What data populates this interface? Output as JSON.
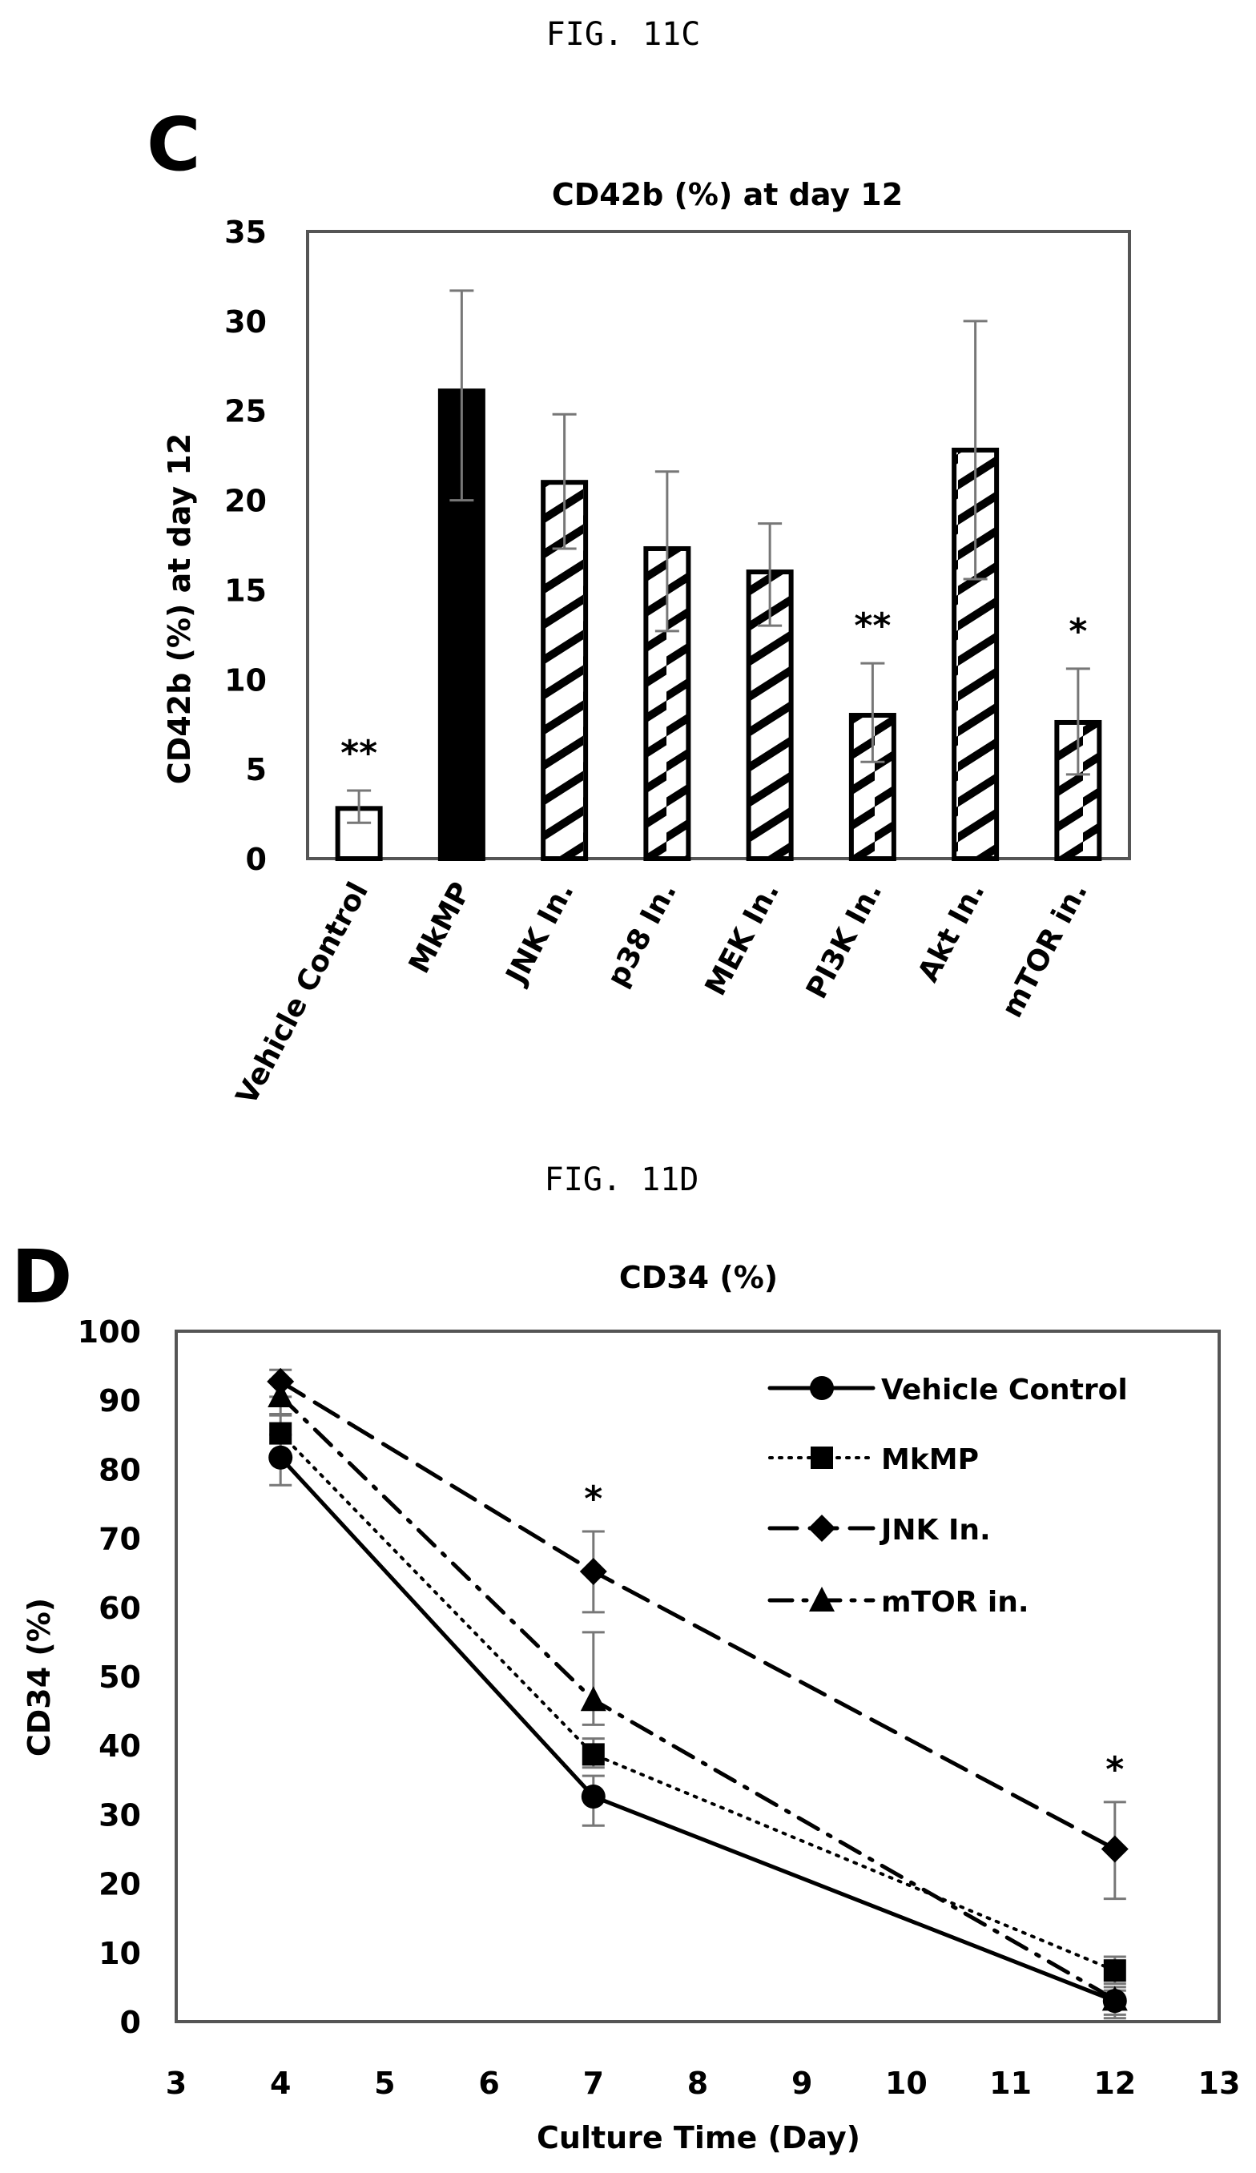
{
  "figures": {
    "fig_c_caption": "FIG. 11C",
    "fig_d_caption": "FIG. 11D",
    "panel_c_letter": "C",
    "panel_d_letter": "D"
  },
  "chart_data": [
    {
      "type": "bar",
      "title": "CD42b (%) at day 12",
      "xlabel": "",
      "ylabel": "CD42b (%) at day 12",
      "ylim": [
        0,
        35
      ],
      "yticks": [
        "0",
        "5",
        "10",
        "15",
        "20",
        "25",
        "30",
        "35"
      ],
      "ytick_values": [
        0,
        5,
        10,
        15,
        20,
        25,
        30,
        35
      ],
      "grid": false,
      "categories": [
        "Vehicle Control",
        "MkMP",
        "JNK In.",
        "p38 In.",
        "MEK In.",
        "PI3K In.",
        "Akt In.",
        "mTOR in."
      ],
      "values": [
        2.8,
        26.1,
        21.0,
        17.3,
        16.0,
        8.0,
        22.8,
        7.6
      ],
      "error_upper": [
        3.8,
        31.7,
        24.8,
        21.6,
        18.7,
        10.9,
        30.0,
        10.6
      ],
      "error_lower": [
        2.0,
        20.0,
        17.3,
        12.7,
        13.0,
        5.4,
        15.6,
        4.7
      ],
      "fill_styles": [
        "white",
        "black",
        "hatched",
        "hatched",
        "hatched",
        "hatched",
        "hatched",
        "hatched"
      ],
      "significance": [
        "**",
        "",
        "",
        "",
        "",
        "**",
        "",
        "*"
      ]
    },
    {
      "type": "line",
      "title": "CD34 (%)",
      "xlabel": "Culture Time (Day)",
      "ylabel": "CD34 (%)",
      "xlim": [
        3,
        13
      ],
      "ylim": [
        0,
        100
      ],
      "xticks": [
        "3",
        "4",
        "5",
        "6",
        "7",
        "8",
        "9",
        "10",
        "11",
        "12",
        "13"
      ],
      "xtick_values": [
        3,
        4,
        5,
        6,
        7,
        8,
        9,
        10,
        11,
        12,
        13
      ],
      "yticks": [
        "0",
        "10",
        "20",
        "30",
        "40",
        "50",
        "60",
        "70",
        "80",
        "90",
        "100"
      ],
      "ytick_values": [
        0,
        10,
        20,
        30,
        40,
        50,
        60,
        70,
        80,
        90,
        100
      ],
      "grid": false,
      "legend_position": "top-right",
      "x": [
        4,
        7,
        12
      ],
      "series": [
        {
          "name": "Vehicle Control",
          "marker": "circle",
          "line_style": "solid",
          "values": [
            81.7,
            32.6,
            3.0
          ],
          "error_upper": [
            85.0,
            35.6,
            4.5
          ],
          "error_lower": [
            77.7,
            28.4,
            1.0
          ]
        },
        {
          "name": "MkMP",
          "marker": "square",
          "line_style": "dotted",
          "values": [
            85.2,
            38.7,
            7.4
          ],
          "error_upper": [
            88.0,
            41.0,
            9.4
          ],
          "error_lower": [
            82.0,
            36.8,
            5.5
          ]
        },
        {
          "name": "JNK In.",
          "marker": "diamond",
          "line_style": "dashed",
          "values": [
            92.7,
            65.2,
            25.0
          ],
          "error_upper": [
            94.4,
            71.0,
            31.8
          ],
          "error_lower": [
            90.5,
            59.3,
            17.8
          ]
        },
        {
          "name": "mTOR  in.",
          "marker": "triangle",
          "line_style": "dash-dot",
          "values": [
            90.6,
            46.6,
            3.2
          ],
          "error_upper": [
            93.0,
            56.4,
            5.0
          ],
          "error_lower": [
            87.8,
            43.0,
            0.5
          ]
        }
      ],
      "significance": [
        {
          "x": 7,
          "label": "*"
        },
        {
          "x": 12,
          "label": "*"
        }
      ]
    }
  ]
}
